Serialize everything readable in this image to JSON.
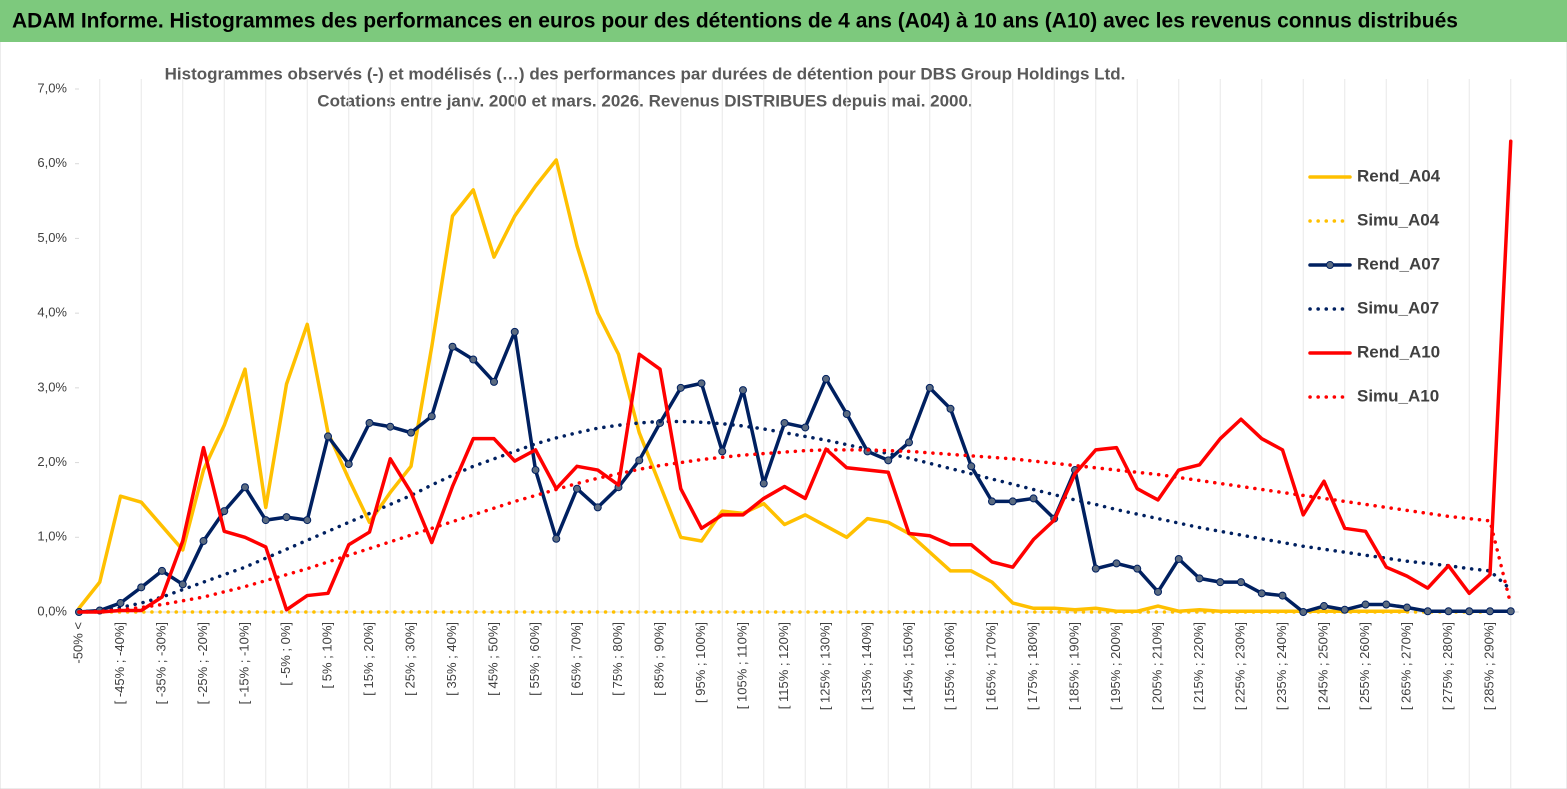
{
  "chart_data": {
    "type": "line",
    "title": "ADAM Informe. Histogrammes des performances en euros pour des détentions de 4 ans (A04) à 10 ans (A10) avec les revenus connus distribués",
    "subtitle": [
      "Histogrammes observés (-) et modélisés (…) des performances par durées de détention pour DBS Group Holdings Ltd.",
      "Cotations entre janv. 2000 et mars. 2026. Revenus DISTRIBUES depuis mai. 2000."
    ],
    "categories": [
      "-50% <",
      null,
      "[ -45% ; -40%]",
      null,
      "[ -35% ; -30%]",
      null,
      "[ -25% ; -20%]",
      null,
      "[ -15% ; -10%]",
      null,
      "[ -5% ; 0%]",
      null,
      "[ 5% ; 10%]",
      null,
      "[ 15% ; 20%]",
      null,
      "[ 25% ; 30%]",
      null,
      "[ 35% ; 40%]",
      null,
      "[ 45% ; 50%]",
      null,
      "[ 55% ; 60%]",
      null,
      "[ 65% ; 70%]",
      null,
      "[ 75% ; 80%]",
      null,
      "[ 85% ; 90%]",
      null,
      "[ 95% ; 100%]",
      null,
      "[ 105% ; 110%]",
      null,
      "[ 115% ; 120%]",
      null,
      "[ 125% ; 130%]",
      null,
      "[ 135% ; 140%]",
      null,
      "[ 145% ; 150%]",
      null,
      "[ 155% ; 160%]",
      null,
      "[ 165% ; 170%]",
      null,
      "[ 175% ; 180%]",
      null,
      "[ 185% ; 190%]",
      null,
      "[ 195% ; 200%]",
      null,
      "[ 205% ; 210%]",
      null,
      "[ 215% ; 220%]",
      null,
      "[ 225% ; 230%]",
      null,
      "[ 235% ; 240%]",
      null,
      "[ 245% ; 250%]",
      null,
      "[ 255% ; 260%]",
      null,
      "[ 265% ; 270%]",
      null,
      "[ 275% ; 280%]",
      null,
      "[ 285% ; 290%]",
      null
    ],
    "ylim": [
      0,
      7
    ],
    "yticks": [
      {
        "value": 0,
        "label": "0,0%"
      },
      {
        "value": 1,
        "label": "1,0%"
      },
      {
        "value": 2,
        "label": "2,0%"
      },
      {
        "value": 3,
        "label": "3,0%"
      },
      {
        "value": 4,
        "label": "4,0%"
      },
      {
        "value": 5,
        "label": "5,0%"
      },
      {
        "value": 6,
        "label": "6,0%"
      },
      {
        "value": 7,
        "label": "7,0%"
      }
    ],
    "series": [
      {
        "name": "Rend_A04",
        "color": "#ffc000",
        "style": "solid",
        "values": [
          0.05,
          0.4,
          1.55,
          1.47,
          1.15,
          0.83,
          1.9,
          2.5,
          3.25,
          1.4,
          3.05,
          3.85,
          2.4,
          1.78,
          1.2,
          1.6,
          1.95,
          3.55,
          5.3,
          5.65,
          4.75,
          5.3,
          5.7,
          6.05,
          4.9,
          4.0,
          3.45,
          2.4,
          1.7,
          1.0,
          0.95,
          1.35,
          1.32,
          1.45,
          1.17,
          1.3,
          1.15,
          1.0,
          1.25,
          1.2,
          1.05,
          0.8,
          0.55,
          0.55,
          0.4,
          0.12,
          0.05,
          0.05,
          0.03,
          0.05,
          0.01,
          0.01,
          0.08,
          0.01,
          0.03,
          0.01,
          0.01,
          0.01,
          0.01,
          0.01,
          0.01,
          0.01,
          0.01,
          0.01,
          0.01,
          null,
          null,
          null,
          null,
          null
        ]
      },
      {
        "name": "Simu_A04",
        "color": "#ffc000",
        "style": "dotted",
        "values": [
          0,
          0,
          0,
          0,
          0,
          0,
          0,
          0,
          0,
          0,
          0,
          0,
          0,
          0,
          0,
          0,
          0,
          0,
          0,
          0,
          0,
          0,
          0,
          0,
          0,
          0,
          0,
          0,
          0,
          0,
          0,
          0,
          0,
          0,
          0,
          0,
          0,
          0,
          0,
          0,
          0,
          0,
          0,
          0,
          0,
          0,
          0,
          0,
          0,
          0,
          0,
          0,
          0,
          0,
          0,
          0,
          0,
          0,
          0,
          0,
          0,
          0,
          0,
          0,
          0,
          0,
          0,
          0,
          0,
          null
        ]
      },
      {
        "name": "Rend_A07",
        "color": "#002060",
        "style": "solid",
        "marker": true,
        "values": [
          0,
          0.02,
          0.12,
          0.33,
          0.55,
          0.37,
          0.95,
          1.35,
          1.67,
          1.23,
          1.27,
          1.23,
          2.35,
          1.98,
          2.53,
          2.48,
          2.4,
          2.62,
          3.55,
          3.38,
          3.08,
          3.75,
          1.9,
          0.98,
          1.65,
          1.4,
          1.67,
          2.03,
          2.53,
          3.0,
          3.06,
          2.15,
          2.97,
          1.72,
          2.53,
          2.47,
          3.12,
          2.65,
          2.15,
          2.03,
          2.27,
          3.0,
          2.72,
          1.95,
          1.48,
          1.48,
          1.52,
          1.25,
          1.9,
          0.58,
          0.65,
          0.58,
          0.27,
          0.71,
          0.45,
          0.4,
          0.4,
          0.25,
          0.22,
          0,
          0.08,
          0.03,
          0.1,
          0.1,
          0.06,
          0.01,
          0.01,
          0.01,
          0.01,
          0.01
        ]
      },
      {
        "name": "Simu_A07",
        "color": "#002060",
        "style": "dotted",
        "values": [
          0,
          0.02,
          0.06,
          0.12,
          0.2,
          0.3,
          0.4,
          0.5,
          0.6,
          0.72,
          0.84,
          0.96,
          1.08,
          1.2,
          1.32,
          1.44,
          1.56,
          1.7,
          1.83,
          1.95,
          2.05,
          2.15,
          2.25,
          2.33,
          2.4,
          2.46,
          2.5,
          2.53,
          2.55,
          2.55,
          2.54,
          2.52,
          2.49,
          2.45,
          2.4,
          2.35,
          2.3,
          2.24,
          2.18,
          2.12,
          2.06,
          1.99,
          1.92,
          1.85,
          1.78,
          1.71,
          1.64,
          1.57,
          1.5,
          1.44,
          1.37,
          1.31,
          1.25,
          1.19,
          1.13,
          1.08,
          1.03,
          0.98,
          0.93,
          0.88,
          0.84,
          0.8,
          0.76,
          0.72,
          0.68,
          0.65,
          0.62,
          0.58,
          0.55,
          0.3
        ]
      },
      {
        "name": "Rend_A10",
        "color": "#ff0000",
        "style": "solid",
        "values": [
          0,
          0,
          0.02,
          0.02,
          0.2,
          0.95,
          2.2,
          1.08,
          1.0,
          0.87,
          0.03,
          0.22,
          0.25,
          0.9,
          1.07,
          2.05,
          1.6,
          0.93,
          1.68,
          2.32,
          2.32,
          2.02,
          2.17,
          1.65,
          1.95,
          1.9,
          1.7,
          3.45,
          3.25,
          1.65,
          1.12,
          1.3,
          1.3,
          1.52,
          1.68,
          1.52,
          2.18,
          1.93,
          1.9,
          1.87,
          1.05,
          1.02,
          0.9,
          0.9,
          0.67,
          0.6,
          0.97,
          1.23,
          1.85,
          2.17,
          2.2,
          1.65,
          1.5,
          1.9,
          1.97,
          2.32,
          2.58,
          2.32,
          2.17,
          1.3,
          1.75,
          1.12,
          1.08,
          0.6,
          0.48,
          0.32,
          0.62,
          0.25,
          0.5,
          6.3
        ]
      },
      {
        "name": "Simu_A10",
        "color": "#ff0000",
        "style": "dotted",
        "values": [
          0,
          0.01,
          0.03,
          0.06,
          0.1,
          0.15,
          0.2,
          0.27,
          0.34,
          0.42,
          0.5,
          0.58,
          0.67,
          0.76,
          0.85,
          0.94,
          1.03,
          1.12,
          1.21,
          1.3,
          1.39,
          1.48,
          1.56,
          1.64,
          1.72,
          1.79,
          1.85,
          1.91,
          1.96,
          2.0,
          2.04,
          2.07,
          2.1,
          2.12,
          2.14,
          2.16,
          2.17,
          2.17,
          2.17,
          2.16,
          2.15,
          2.13,
          2.11,
          2.09,
          2.07,
          2.05,
          2.02,
          1.99,
          1.96,
          1.93,
          1.9,
          1.87,
          1.84,
          1.8,
          1.76,
          1.72,
          1.68,
          1.64,
          1.6,
          1.56,
          1.52,
          1.48,
          1.44,
          1.4,
          1.36,
          1.32,
          1.28,
          1.25,
          1.22,
          0.1
        ]
      }
    ]
  }
}
